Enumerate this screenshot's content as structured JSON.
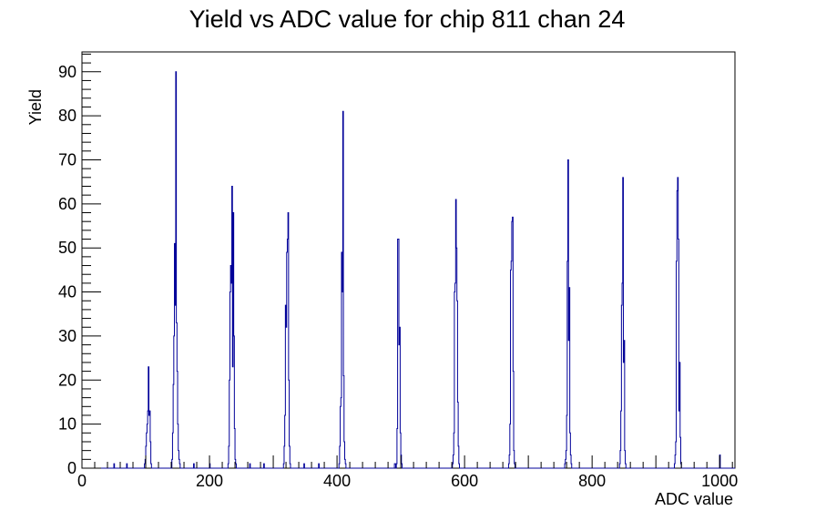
{
  "chart_data": {
    "type": "histogram",
    "title": "Yield vs ADC value for chip 811 chan 24",
    "xlabel": "ADC value",
    "ylabel": "Yield",
    "xlim": [
      0,
      1024
    ],
    "ylim": [
      0,
      94.5
    ],
    "bin_width": 1,
    "x_ticks": [
      0,
      200,
      400,
      600,
      800,
      1000
    ],
    "y_ticks": [
      0,
      10,
      20,
      30,
      40,
      50,
      60,
      70,
      80,
      90
    ],
    "grid": false,
    "legend": "none",
    "line_color": "#000099",
    "bins": [
      [
        50,
        1
      ],
      [
        70,
        1
      ],
      [
        98,
        1
      ],
      [
        99,
        2
      ],
      [
        100,
        5
      ],
      [
        101,
        8
      ],
      [
        102,
        10
      ],
      [
        103,
        13
      ],
      [
        104,
        23
      ],
      [
        105,
        12
      ],
      [
        106,
        13
      ],
      [
        107,
        6
      ],
      [
        108,
        1
      ],
      [
        141,
        2
      ],
      [
        142,
        8
      ],
      [
        143,
        19
      ],
      [
        144,
        30
      ],
      [
        145,
        51
      ],
      [
        146,
        37
      ],
      [
        147,
        90
      ],
      [
        148,
        33
      ],
      [
        149,
        22
      ],
      [
        150,
        10
      ],
      [
        151,
        4
      ],
      [
        152,
        2
      ],
      [
        153,
        1
      ],
      [
        175,
        1
      ],
      [
        200,
        1
      ],
      [
        229,
        1
      ],
      [
        230,
        5
      ],
      [
        231,
        20
      ],
      [
        232,
        40
      ],
      [
        233,
        46
      ],
      [
        234,
        42
      ],
      [
        235,
        64
      ],
      [
        236,
        23
      ],
      [
        237,
        58
      ],
      [
        238,
        30
      ],
      [
        239,
        9
      ],
      [
        240,
        2
      ],
      [
        241,
        1
      ],
      [
        263,
        1
      ],
      [
        285,
        1
      ],
      [
        316,
        1
      ],
      [
        317,
        5
      ],
      [
        318,
        12
      ],
      [
        319,
        37
      ],
      [
        320,
        32
      ],
      [
        321,
        49
      ],
      [
        322,
        52
      ],
      [
        323,
        58
      ],
      [
        324,
        20
      ],
      [
        325,
        5
      ],
      [
        326,
        1
      ],
      [
        348,
        1
      ],
      [
        371,
        1
      ],
      [
        403,
        1
      ],
      [
        404,
        5
      ],
      [
        405,
        14
      ],
      [
        406,
        16
      ],
      [
        407,
        49
      ],
      [
        408,
        40
      ],
      [
        409,
        81
      ],
      [
        410,
        21
      ],
      [
        411,
        6
      ],
      [
        412,
        2
      ],
      [
        413,
        1
      ],
      [
        490,
        1
      ],
      [
        491,
        1
      ],
      [
        493,
        1
      ],
      [
        494,
        9
      ],
      [
        495,
        52
      ],
      [
        496,
        52
      ],
      [
        497,
        28
      ],
      [
        498,
        32
      ],
      [
        499,
        8
      ],
      [
        500,
        3
      ],
      [
        501,
        1
      ],
      [
        581,
        1
      ],
      [
        582,
        3
      ],
      [
        583,
        8
      ],
      [
        584,
        40
      ],
      [
        585,
        42
      ],
      [
        586,
        61
      ],
      [
        587,
        50
      ],
      [
        588,
        38
      ],
      [
        589,
        15
      ],
      [
        590,
        5
      ],
      [
        591,
        1
      ],
      [
        669,
        1
      ],
      [
        670,
        3
      ],
      [
        671,
        10
      ],
      [
        672,
        45
      ],
      [
        673,
        47
      ],
      [
        674,
        56
      ],
      [
        675,
        57
      ],
      [
        676,
        22
      ],
      [
        677,
        4
      ],
      [
        678,
        1
      ],
      [
        757,
        1
      ],
      [
        758,
        2
      ],
      [
        759,
        4
      ],
      [
        760,
        12
      ],
      [
        761,
        47
      ],
      [
        762,
        70
      ],
      [
        763,
        29
      ],
      [
        764,
        41
      ],
      [
        765,
        8
      ],
      [
        766,
        3
      ],
      [
        767,
        1
      ],
      [
        843,
        1
      ],
      [
        844,
        4
      ],
      [
        845,
        13
      ],
      [
        846,
        37
      ],
      [
        847,
        42
      ],
      [
        848,
        66
      ],
      [
        849,
        24
      ],
      [
        850,
        29
      ],
      [
        851,
        4
      ],
      [
        852,
        1
      ],
      [
        929,
        1
      ],
      [
        930,
        3
      ],
      [
        931,
        6
      ],
      [
        932,
        47
      ],
      [
        933,
        63
      ],
      [
        934,
        66
      ],
      [
        935,
        52
      ],
      [
        936,
        13
      ],
      [
        937,
        24
      ],
      [
        938,
        7
      ],
      [
        939,
        1
      ],
      [
        1000,
        3
      ]
    ]
  }
}
